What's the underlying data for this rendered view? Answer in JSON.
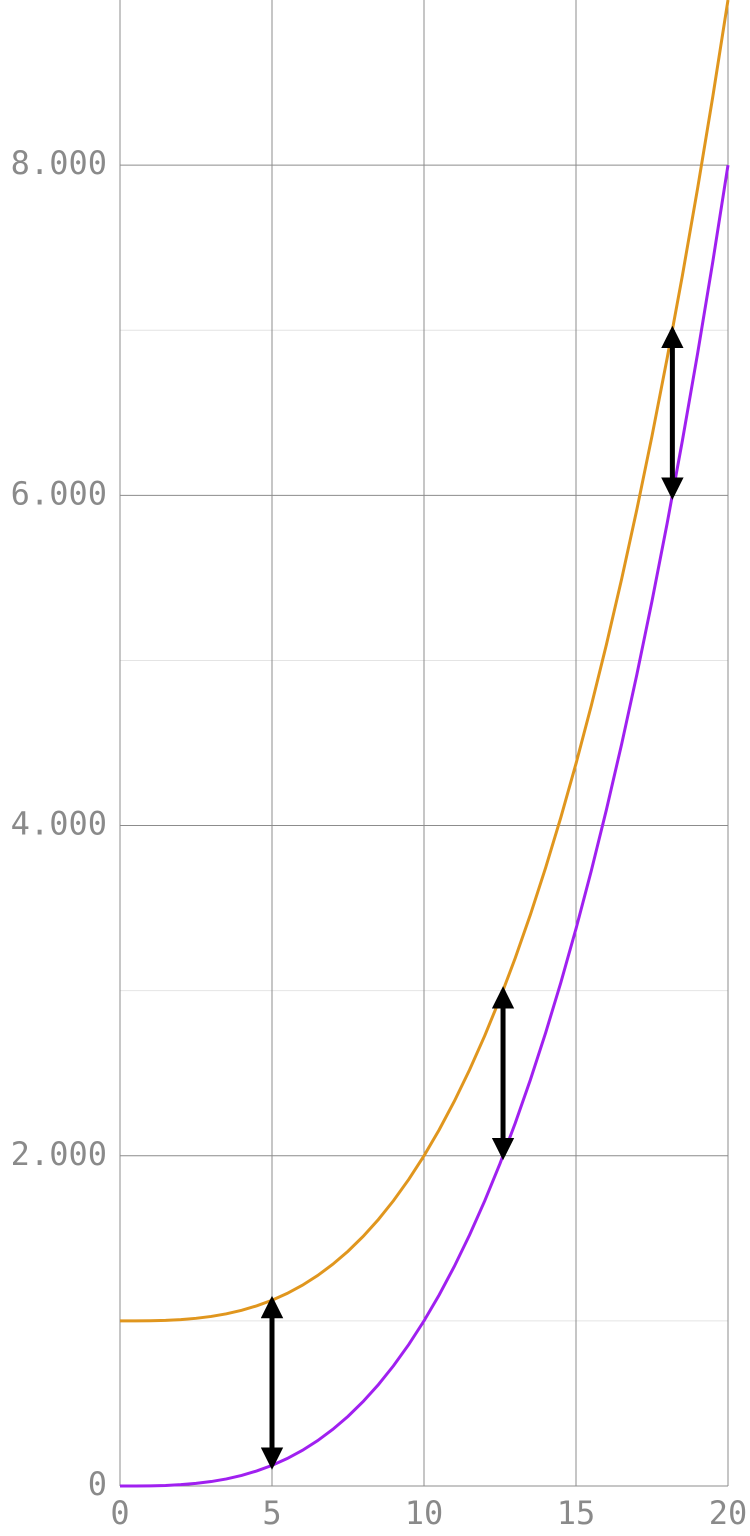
{
  "chart_data": {
    "type": "line",
    "x": [
      0,
      0.5,
      1,
      1.5,
      2,
      2.5,
      3,
      3.5,
      4,
      4.5,
      5,
      5.5,
      6,
      6.5,
      7,
      7.5,
      8,
      8.5,
      9,
      9.5,
      10,
      10.5,
      11,
      11.5,
      12,
      12.5,
      13,
      13.5,
      14,
      14.5,
      15,
      15.5,
      16,
      16.5,
      17,
      17.5,
      18,
      18.5,
      19,
      19.5,
      20
    ],
    "series": [
      {
        "color": "#e0961e",
        "values": [
          1000,
          1000.125,
          1001,
          1003.375,
          1008,
          1015.625,
          1027,
          1042.875,
          1064,
          1091.125,
          1125,
          1166.375,
          1216,
          1274.625,
          1343,
          1421.875,
          1512,
          1614.125,
          1729,
          1857.375,
          2000,
          2157.625,
          2331,
          2520.875,
          2728,
          2953.125,
          3197,
          3460.375,
          3744,
          4048.625,
          4375,
          4723.875,
          5096,
          5492.125,
          5913,
          6359.375,
          6832,
          7331.625,
          7859,
          8414.875,
          9000
        ]
      },
      {
        "color": "#a020f0",
        "values": [
          0,
          0.125,
          1,
          3.375,
          8,
          15.625,
          27,
          42.875,
          64,
          91.125,
          125,
          166.375,
          216,
          274.625,
          343,
          421.875,
          512,
          614.125,
          729,
          857.375,
          1000,
          1157.625,
          1331,
          1520.875,
          1728,
          1953.125,
          2197,
          2460.375,
          2744,
          3048.625,
          3375,
          3723.875,
          4096,
          4492.125,
          4913,
          5359.375,
          5832,
          6331.625,
          6859,
          7414.875,
          8000
        ]
      }
    ],
    "arrows": [
      {
        "x": 5,
        "from": 125,
        "to": 1125
      },
      {
        "x": 12.6,
        "from": 2000,
        "to": 3000
      },
      {
        "x": 18.17,
        "from": 6000,
        "to": 7000
      }
    ],
    "xlim": [
      0,
      20
    ],
    "ylim": [
      0,
      9000
    ],
    "xticks": [
      0,
      5,
      10,
      15,
      20
    ],
    "yticks": [
      0,
      {
        "value": 2000,
        "label": "2.000"
      },
      {
        "value": 4000,
        "label": "4.000"
      },
      {
        "value": 6000,
        "label": "6.000"
      },
      {
        "value": 8000,
        "label": "8.000"
      }
    ],
    "minor_yticks": [
      1000,
      3000,
      5000,
      7000
    ],
    "grid": true
  }
}
